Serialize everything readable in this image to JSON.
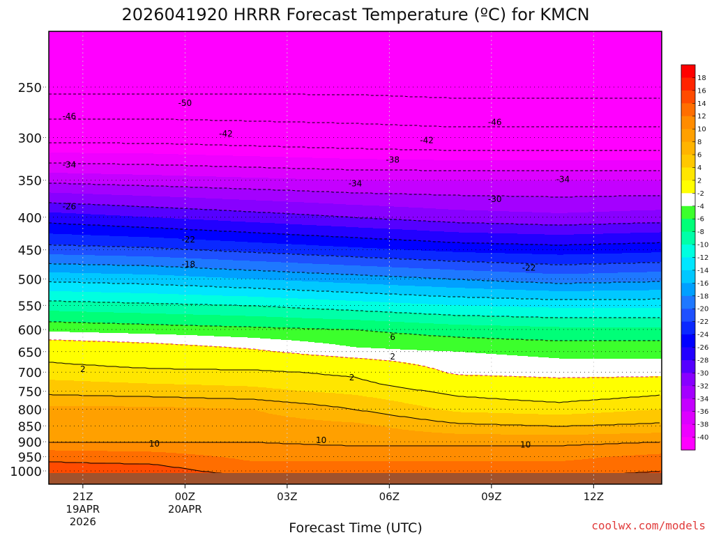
{
  "title": "2026041920 HRRR Forecast Temperature (ºC) for KMCN",
  "credit": "coolwx.com/models",
  "chart_data": {
    "type": "heatmap",
    "title": "2026041920 HRRR Forecast Temperature (ºC) for KMCN",
    "xlabel": "Forecast Time (UTC)",
    "x_ticks": [
      {
        "hour": 1,
        "lines": [
          "21Z",
          "19APR",
          "2026"
        ]
      },
      {
        "hour": 4,
        "lines": [
          "00Z",
          "20APR"
        ]
      },
      {
        "hour": 7,
        "lines": [
          "03Z"
        ]
      },
      {
        "hour": 10,
        "lines": [
          "06Z"
        ]
      },
      {
        "hour": 13,
        "lines": [
          "09Z"
        ]
      },
      {
        "hour": 16,
        "lines": [
          "12Z"
        ]
      }
    ],
    "x_range_hours": [
      0,
      18
    ],
    "y_axis": "pressure (hPa), reversed",
    "y_ticks": [
      250,
      300,
      350,
      400,
      450,
      500,
      550,
      600,
      650,
      700,
      750,
      800,
      850,
      900,
      950,
      1000
    ],
    "y_range": [
      1020,
      200
    ],
    "profile_hours": [
      0,
      3,
      6,
      9,
      12,
      15,
      18
    ],
    "profile_levels": [
      200,
      250,
      300,
      350,
      400,
      450,
      500,
      550,
      600,
      650,
      700,
      750,
      800,
      850,
      900,
      950,
      1000,
      1020
    ],
    "profile_temps": [
      [
        -60,
        -51.0,
        -43.0,
        -34.5,
        -27.0,
        -21.0,
        -14.5,
        -9.0,
        -4.5,
        1.0,
        3.0,
        5.5,
        8.5,
        9.5,
        10.0,
        13.5,
        15.0,
        16.0
      ],
      [
        -60,
        -51.0,
        -43.0,
        -35.0,
        -28.0,
        -21.5,
        -15.0,
        -9.5,
        -5.0,
        0.0,
        2.5,
        5.0,
        8.5,
        9.5,
        10.0,
        13.0,
        15.0,
        16.0
      ],
      [
        -60,
        -51.0,
        -43.5,
        -35.5,
        -29.0,
        -22.5,
        -16.0,
        -10.0,
        -5.5,
        -1.5,
        2.5,
        4.5,
        8.0,
        9.0,
        10.0,
        11.5,
        13.0,
        14.0
      ],
      [
        -60,
        -51.0,
        -44.0,
        -36.0,
        -30.0,
        -23.5,
        -17.0,
        -11.0,
        -6.0,
        -3.5,
        1.5,
        3.5,
        6.0,
        8.5,
        9.5,
        11.5,
        13.0,
        14.0
      ],
      [
        -60,
        -51.5,
        -44.5,
        -36.0,
        -31.0,
        -24.5,
        -18.0,
        -12.0,
        -7.0,
        -4.0,
        -2.5,
        1.5,
        3.5,
        6.5,
        9.5,
        11.5,
        13.0,
        14.0
      ],
      [
        -60,
        -51.5,
        -44.5,
        -36.0,
        -31.5,
        -25.0,
        -19.0,
        -12.5,
        -7.5,
        -4.5,
        -3.0,
        0.5,
        3.0,
        6.0,
        9.5,
        11.5,
        13.0,
        14.0
      ],
      [
        -60,
        -51.5,
        -44.5,
        -36.0,
        -31.0,
        -24.5,
        -18.5,
        -12.5,
        -7.5,
        -4.5,
        -3.0,
        1.5,
        4.0,
        6.5,
        10.0,
        12.5,
        14.0,
        15.0
      ]
    ],
    "colorbar_labels": [
      18,
      16,
      14,
      12,
      10,
      8,
      6,
      4,
      2,
      -2,
      -4,
      -6,
      -8,
      -10,
      -12,
      -14,
      -16,
      -18,
      -20,
      -22,
      -24,
      -26,
      -28,
      -30,
      -32,
      -34,
      -36,
      -38,
      -40
    ],
    "fill_colors": [
      {
        "v": -40,
        "color": "#ff00ff"
      },
      {
        "v": -38,
        "color": "#ee00ff"
      },
      {
        "v": -36,
        "color": "#dd00ff"
      },
      {
        "v": -34,
        "color": "#c400ff"
      },
      {
        "v": -32,
        "color": "#a400ff"
      },
      {
        "v": -30,
        "color": "#8800ff"
      },
      {
        "v": -28,
        "color": "#5500ff"
      },
      {
        "v": -26,
        "color": "#2200ff"
      },
      {
        "v": -24,
        "color": "#0000ff"
      },
      {
        "v": -22,
        "color": "#0a28ff"
      },
      {
        "v": -20,
        "color": "#1e50ff"
      },
      {
        "v": -18,
        "color": "#1e78ff"
      },
      {
        "v": -16,
        "color": "#00a0ff"
      },
      {
        "v": -14,
        "color": "#00c8ff"
      },
      {
        "v": -12,
        "color": "#00e6ff"
      },
      {
        "v": -10,
        "color": "#00ffe0"
      },
      {
        "v": -8,
        "color": "#00ffa8"
      },
      {
        "v": -6,
        "color": "#00ff78"
      },
      {
        "v": -4,
        "color": "#3cff2c"
      },
      {
        "v": -2,
        "color": "#ffffff"
      },
      {
        "v": 2,
        "color": "#ffff00"
      },
      {
        "v": 4,
        "color": "#ffe600"
      },
      {
        "v": 6,
        "color": "#ffc800"
      },
      {
        "v": 8,
        "color": "#ffb400"
      },
      {
        "v": 10,
        "color": "#ffa000"
      },
      {
        "v": 12,
        "color": "#ff8c00"
      },
      {
        "v": 14,
        "color": "#ff6e00"
      },
      {
        "v": 16,
        "color": "#ff4b00"
      },
      {
        "v": 18,
        "color": "#ff2400"
      },
      {
        "v": 99,
        "color": "#ff0000"
      }
    ],
    "ground_color": "#a0522d",
    "contour_labels": [
      {
        "text": "-50",
        "hour": 4.0,
        "level": 265
      },
      {
        "text": "-46",
        "hour": 0.6,
        "level": 278
      },
      {
        "text": "-46",
        "hour": 13.1,
        "level": 284
      },
      {
        "text": "-42",
        "hour": 5.2,
        "level": 296
      },
      {
        "text": "-42",
        "hour": 11.1,
        "level": 303
      },
      {
        "text": "-38",
        "hour": 10.1,
        "level": 325
      },
      {
        "text": "-34",
        "hour": 0.6,
        "level": 331
      },
      {
        "text": "-34",
        "hour": 9.0,
        "level": 354
      },
      {
        "text": "-34",
        "hour": 15.1,
        "level": 349
      },
      {
        "text": "-30",
        "hour": 13.1,
        "level": 375
      },
      {
        "text": "-26",
        "hour": 0.6,
        "level": 385
      },
      {
        "text": "-22",
        "hour": 4.1,
        "level": 434
      },
      {
        "text": "-22",
        "hour": 14.1,
        "level": 480
      },
      {
        "text": "-18",
        "hour": 4.1,
        "level": 474
      },
      {
        "text": "6",
        "hour": 10.1,
        "level": 617
      },
      {
        "text": "2",
        "hour": 10.1,
        "level": 662
      },
      {
        "text": "2",
        "hour": 1.0,
        "level": 693
      },
      {
        "text": "2",
        "hour": 8.9,
        "level": 714
      },
      {
        "text": "10",
        "hour": 3.1,
        "level": 906
      },
      {
        "text": "10",
        "hour": 8.0,
        "level": 895
      },
      {
        "text": "10",
        "hour": 14.0,
        "level": 910
      }
    ]
  }
}
